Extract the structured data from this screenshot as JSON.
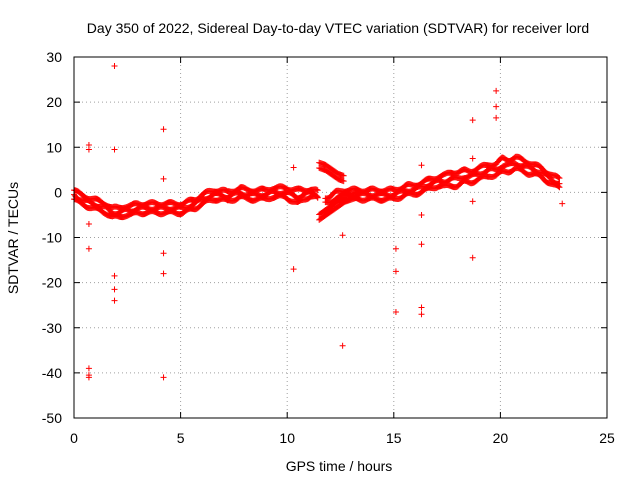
{
  "chart_data": {
    "type": "scatter",
    "title": "Day 350 of 2022, Sidereal Day-to-day VTEC variation (SDTVAR) for receiver lord",
    "xlabel": "GPS time / hours",
    "ylabel": "SDTVAR / TECUs",
    "xlim": [
      0,
      25
    ],
    "ylim": [
      -50,
      30
    ],
    "xticks": [
      0,
      5,
      10,
      15,
      20,
      25
    ],
    "yticks": [
      -50,
      -40,
      -30,
      -20,
      -10,
      0,
      10,
      20,
      30
    ],
    "grid": true,
    "marker": "+",
    "color": "#ff0000",
    "series": [
      {
        "name": "SDTVAR",
        "main_band": {
          "x": [
            0.0,
            0.3,
            0.6,
            0.9,
            1.2,
            1.5,
            1.8,
            2.1,
            2.4,
            2.7,
            3.0,
            3.3,
            3.6,
            3.9,
            4.2,
            4.5,
            4.8,
            5.1,
            5.4,
            5.7,
            6.0,
            6.3,
            6.6,
            6.9,
            7.2,
            7.5,
            7.8,
            8.1,
            8.4,
            8.7,
            9.0,
            9.3,
            9.6,
            9.9,
            10.2,
            10.5,
            10.8,
            11.1,
            11.4,
            11.7,
            12.0,
            12.3,
            12.6,
            12.9,
            13.2,
            13.5,
            13.8,
            14.1,
            14.4,
            14.7,
            15.0,
            15.3,
            15.6,
            15.9,
            16.2,
            16.5,
            16.8,
            17.1,
            17.4,
            17.7,
            18.0,
            18.3,
            18.6,
            18.9,
            19.2,
            19.5,
            19.8,
            20.1,
            20.4,
            20.7,
            21.0,
            21.3,
            21.6,
            21.9,
            22.2,
            22.5,
            22.8
          ],
          "y": [
            -0.5,
            -1.5,
            -2.0,
            -2.5,
            -3.0,
            -3.5,
            -4.5,
            -4.5,
            -4.0,
            -4.0,
            -3.5,
            -3.5,
            -3.5,
            -3.5,
            -3.5,
            -3.5,
            -3.5,
            -3.5,
            -3.0,
            -2.5,
            -1.5,
            -1.0,
            -0.5,
            -0.5,
            -1.0,
            -0.5,
            0.0,
            -0.5,
            -0.5,
            -0.5,
            -0.5,
            0.0,
            0.0,
            0.0,
            -0.5,
            -1.0,
            -0.5,
            0.0,
            -0.5,
            -2.5,
            -2.5,
            -1.0,
            -0.5,
            -0.5,
            -0.5,
            -0.5,
            -0.5,
            -0.5,
            -0.5,
            -0.5,
            -0.5,
            0.0,
            0.5,
            0.5,
            1.0,
            1.5,
            2.0,
            2.5,
            2.5,
            3.0,
            3.0,
            3.5,
            3.5,
            4.0,
            4.5,
            5.0,
            5.0,
            6.0,
            6.0,
            6.5,
            6.0,
            5.5,
            5.0,
            4.5,
            3.5,
            2.5,
            2.0
          ],
          "spread": [
            2.0,
            2.0,
            2.0,
            2.0,
            2.0,
            2.0,
            2.0,
            2.0,
            2.0,
            2.0,
            2.0,
            2.0,
            2.0,
            2.0,
            2.0,
            2.0,
            2.0,
            2.0,
            2.0,
            2.0,
            2.0,
            2.0,
            2.0,
            2.0,
            2.0,
            2.0,
            2.0,
            2.0,
            2.0,
            2.0,
            2.0,
            2.0,
            2.0,
            2.0,
            2.5,
            3.0,
            2.0,
            1.5,
            1.5,
            3.0,
            3.0,
            2.0,
            2.0,
            2.0,
            2.0,
            2.0,
            2.0,
            2.0,
            2.0,
            2.0,
            2.0,
            2.0,
            2.0,
            2.0,
            2.0,
            2.0,
            2.0,
            2.0,
            2.5,
            3.0,
            3.0,
            2.5,
            2.5,
            2.5,
            2.5,
            2.5,
            2.5,
            3.0,
            2.5,
            2.5,
            2.5,
            2.5,
            2.0,
            2.0,
            2.0,
            2.0,
            2.0
          ]
        },
        "upper_arc": {
          "x": [
            11.5,
            11.8,
            12.1,
            12.4,
            12.7
          ],
          "y": [
            6.0,
            5.5,
            4.5,
            3.5,
            3.0
          ]
        },
        "lower_arc": {
          "x": [
            11.5,
            11.8,
            12.1,
            12.4,
            12.7,
            13.0,
            13.3
          ],
          "y": [
            -5.5,
            -4.5,
            -3.5,
            -2.5,
            -1.5,
            -1.0,
            -0.5
          ]
        },
        "outliers": {
          "x": [
            0.7,
            0.7,
            0.7,
            0.7,
            0.7,
            0.7,
            0.7,
            1.9,
            1.9,
            1.9,
            1.9,
            1.9,
            4.2,
            4.2,
            4.2,
            4.2,
            4.2,
            10.3,
            10.3,
            12.6,
            12.6,
            15.1,
            15.1,
            15.1,
            16.3,
            16.3,
            16.3,
            16.3,
            16.3,
            18.7,
            18.7,
            18.7,
            18.7,
            19.8,
            19.8,
            19.8,
            22.9
          ],
          "y": [
            10.5,
            9.5,
            -7.0,
            -12.5,
            -39.0,
            -40.5,
            -41.0,
            28.0,
            9.5,
            -18.5,
            -21.5,
            -24.0,
            14.0,
            3.0,
            -13.5,
            -18.0,
            -41.0,
            5.5,
            -17.0,
            -9.5,
            -34.0,
            -12.5,
            -17.5,
            -26.5,
            6.0,
            -5.0,
            -11.5,
            -25.5,
            -27.0,
            16.0,
            7.5,
            -2.0,
            -14.5,
            22.5,
            19.0,
            16.5,
            -2.5
          ]
        }
      }
    ]
  }
}
